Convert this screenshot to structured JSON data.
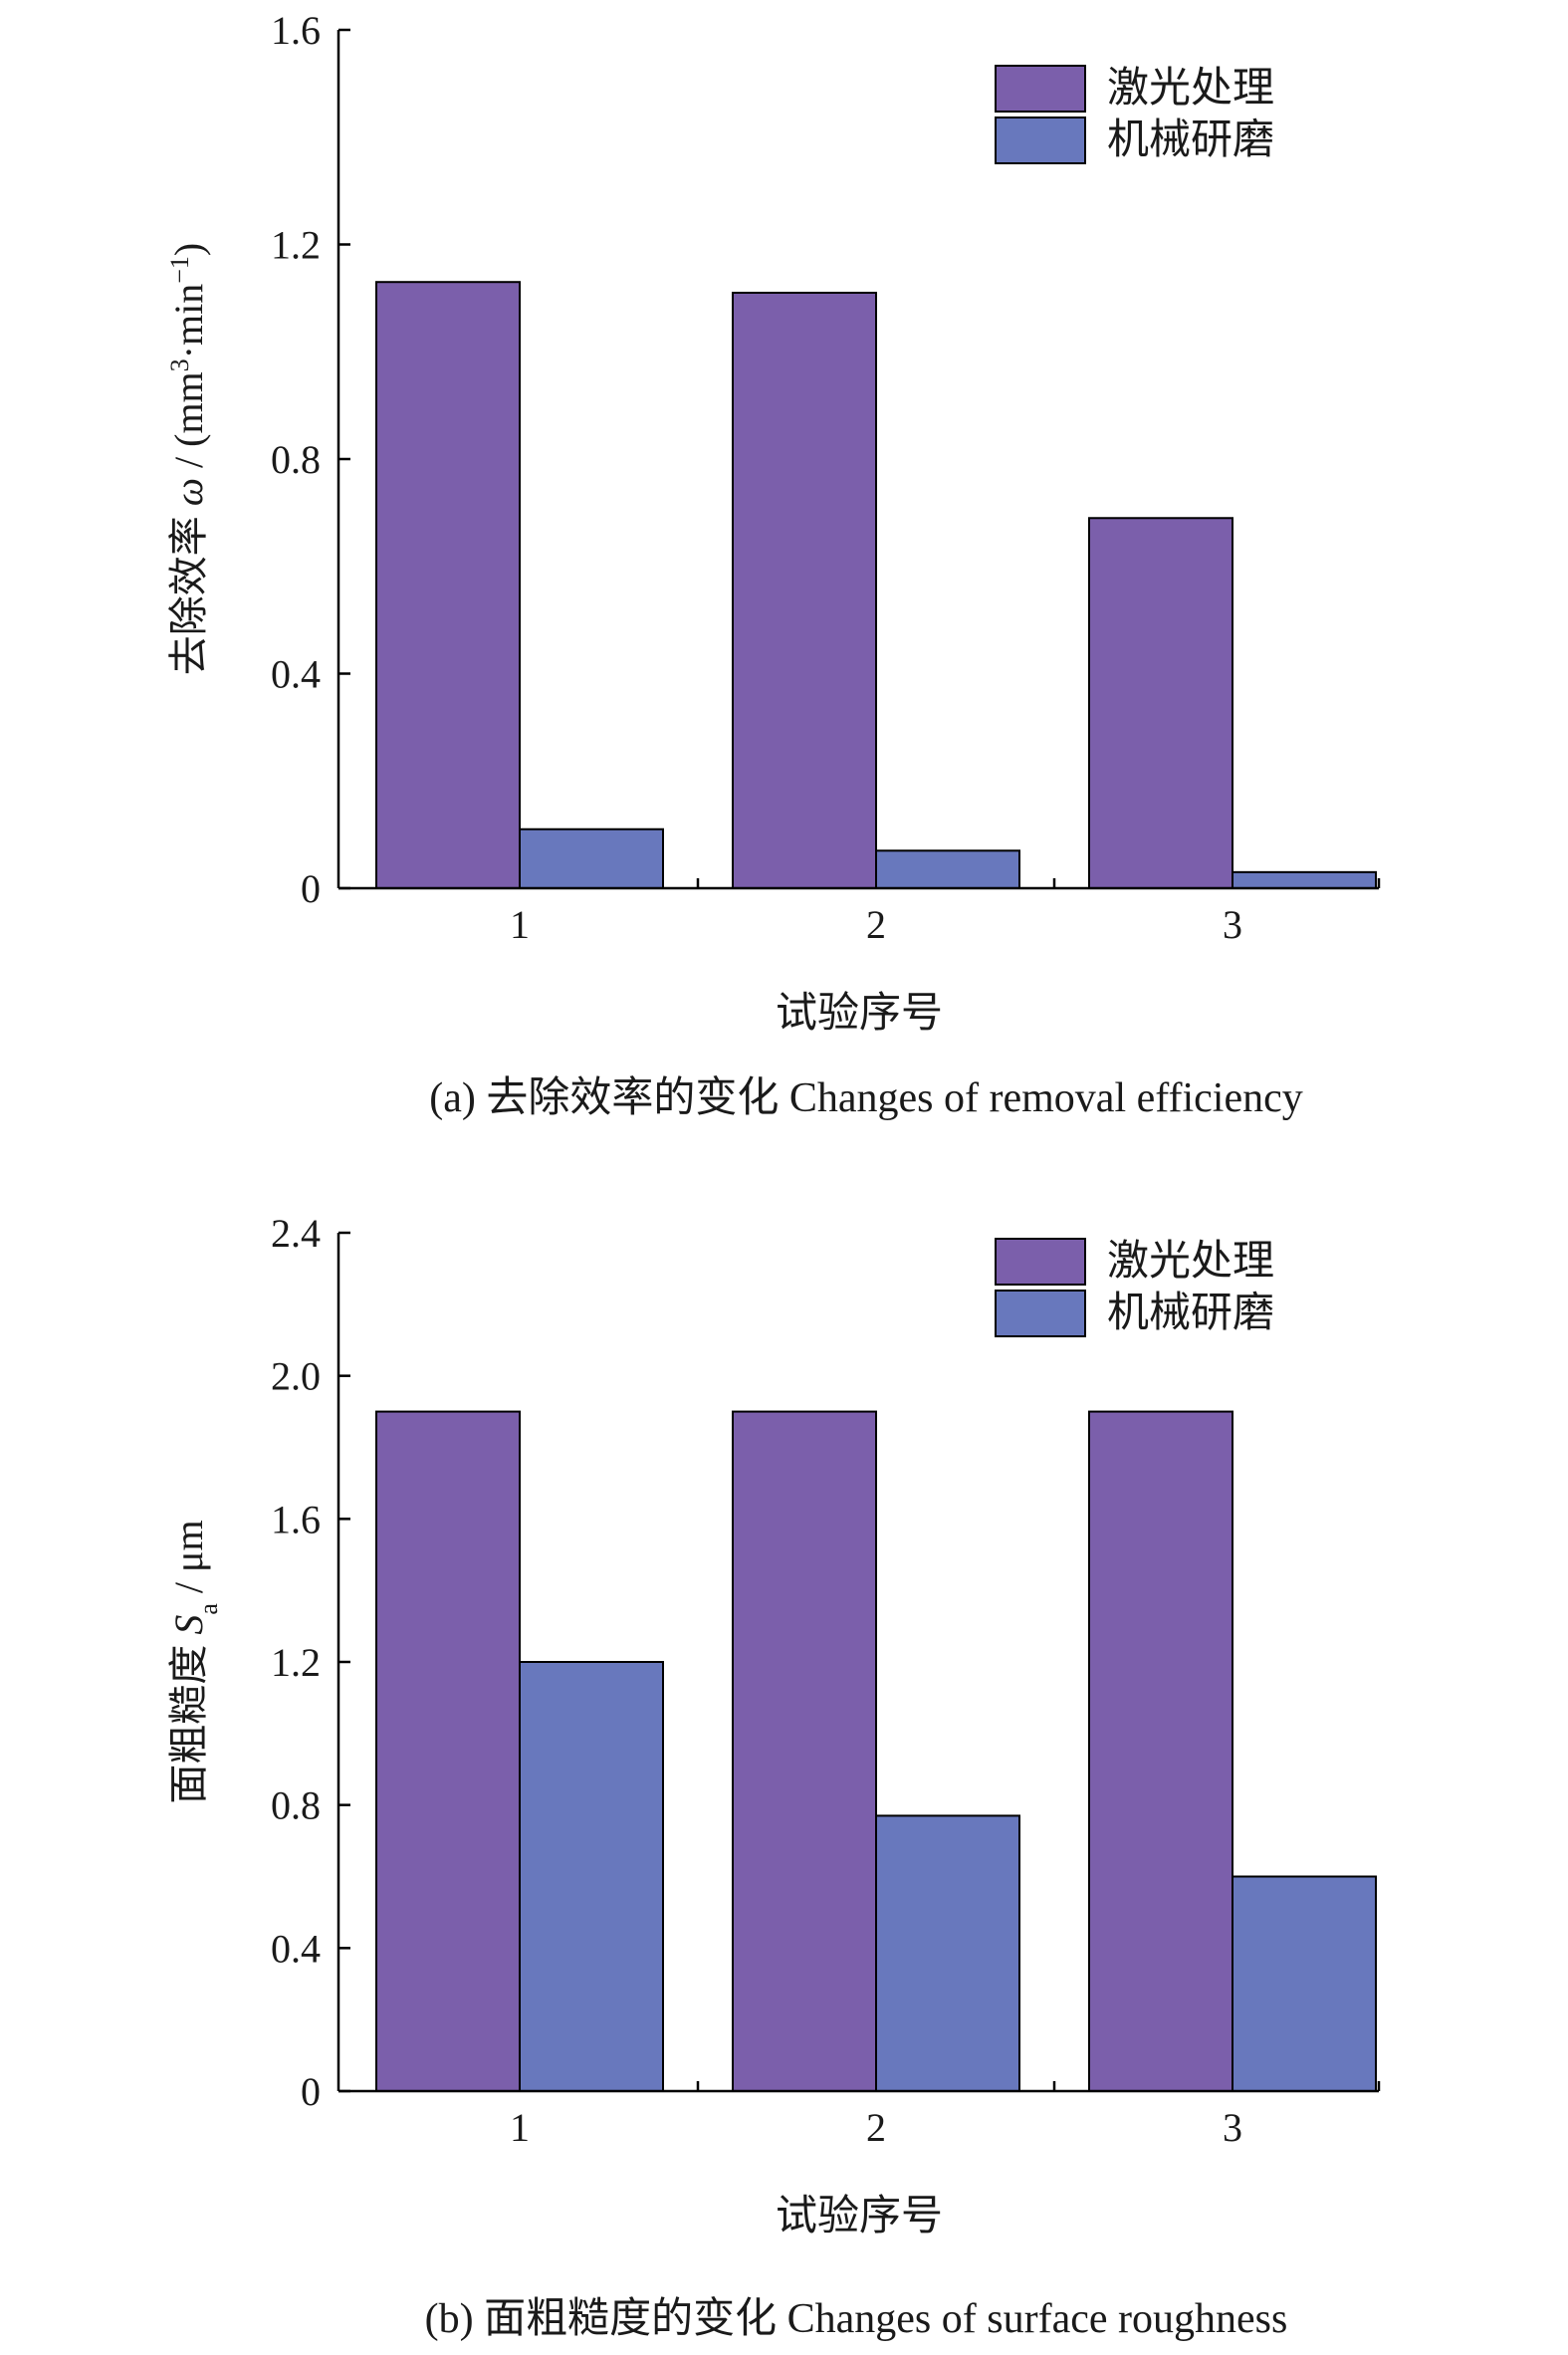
{
  "chart_data": [
    {
      "type": "bar",
      "categories": [
        "1",
        "2",
        "3"
      ],
      "series": [
        {
          "name": "激光处理",
          "color": "#7b5fab",
          "values": [
            1.13,
            1.11,
            0.69
          ]
        },
        {
          "name": "机械研磨",
          "color": "#6878bd",
          "values": [
            0.11,
            0.07,
            0.03
          ]
        }
      ],
      "ylabel": "去除效率 ω / (mm³·min⁻¹)",
      "ylabel_prefix": "去除效率 ",
      "ylabel_symbol": "ω",
      "ylabel_unit_pre": " / (mm",
      "ylabel_sup1": "3",
      "ylabel_unit_mid": "·min",
      "ylabel_sup2": "−1",
      "ylabel_unit_post": ")",
      "xlabel": "试验序号",
      "caption": "(a) 去除效率的变化 Changes of removal efficiency",
      "ylim": [
        0,
        1.6
      ],
      "yticks": [
        "0",
        "0.4",
        "0.8",
        "1.2",
        "1.6"
      ],
      "ytick_values": [
        0,
        0.4,
        0.8,
        1.2,
        1.6
      ],
      "legend_position": "top-right",
      "grid": false
    },
    {
      "type": "bar",
      "categories": [
        "1",
        "2",
        "3"
      ],
      "series": [
        {
          "name": "激光处理",
          "color": "#7b5fab",
          "values": [
            1.9,
            1.9,
            1.9
          ]
        },
        {
          "name": "机械研磨",
          "color": "#6878bd",
          "values": [
            1.2,
            0.77,
            0.6
          ]
        }
      ],
      "ylabel": "面粗糙度 Sa / μm",
      "ylabel_prefix": "面粗糙度 ",
      "ylabel_symbol": "S",
      "ylabel_sub": "a",
      "ylabel_unit": " / μm",
      "xlabel": "试验序号",
      "caption": "(b) 面粗糙度的变化 Changes of surface roughness",
      "ylim": [
        0,
        2.4
      ],
      "yticks": [
        "0",
        "0.4",
        "0.8",
        "1.2",
        "1.6",
        "2.0",
        "2.4"
      ],
      "ytick_values": [
        0,
        0.4,
        0.8,
        1.2,
        1.6,
        2.0,
        2.4
      ],
      "legend_position": "top-right",
      "grid": false
    }
  ]
}
